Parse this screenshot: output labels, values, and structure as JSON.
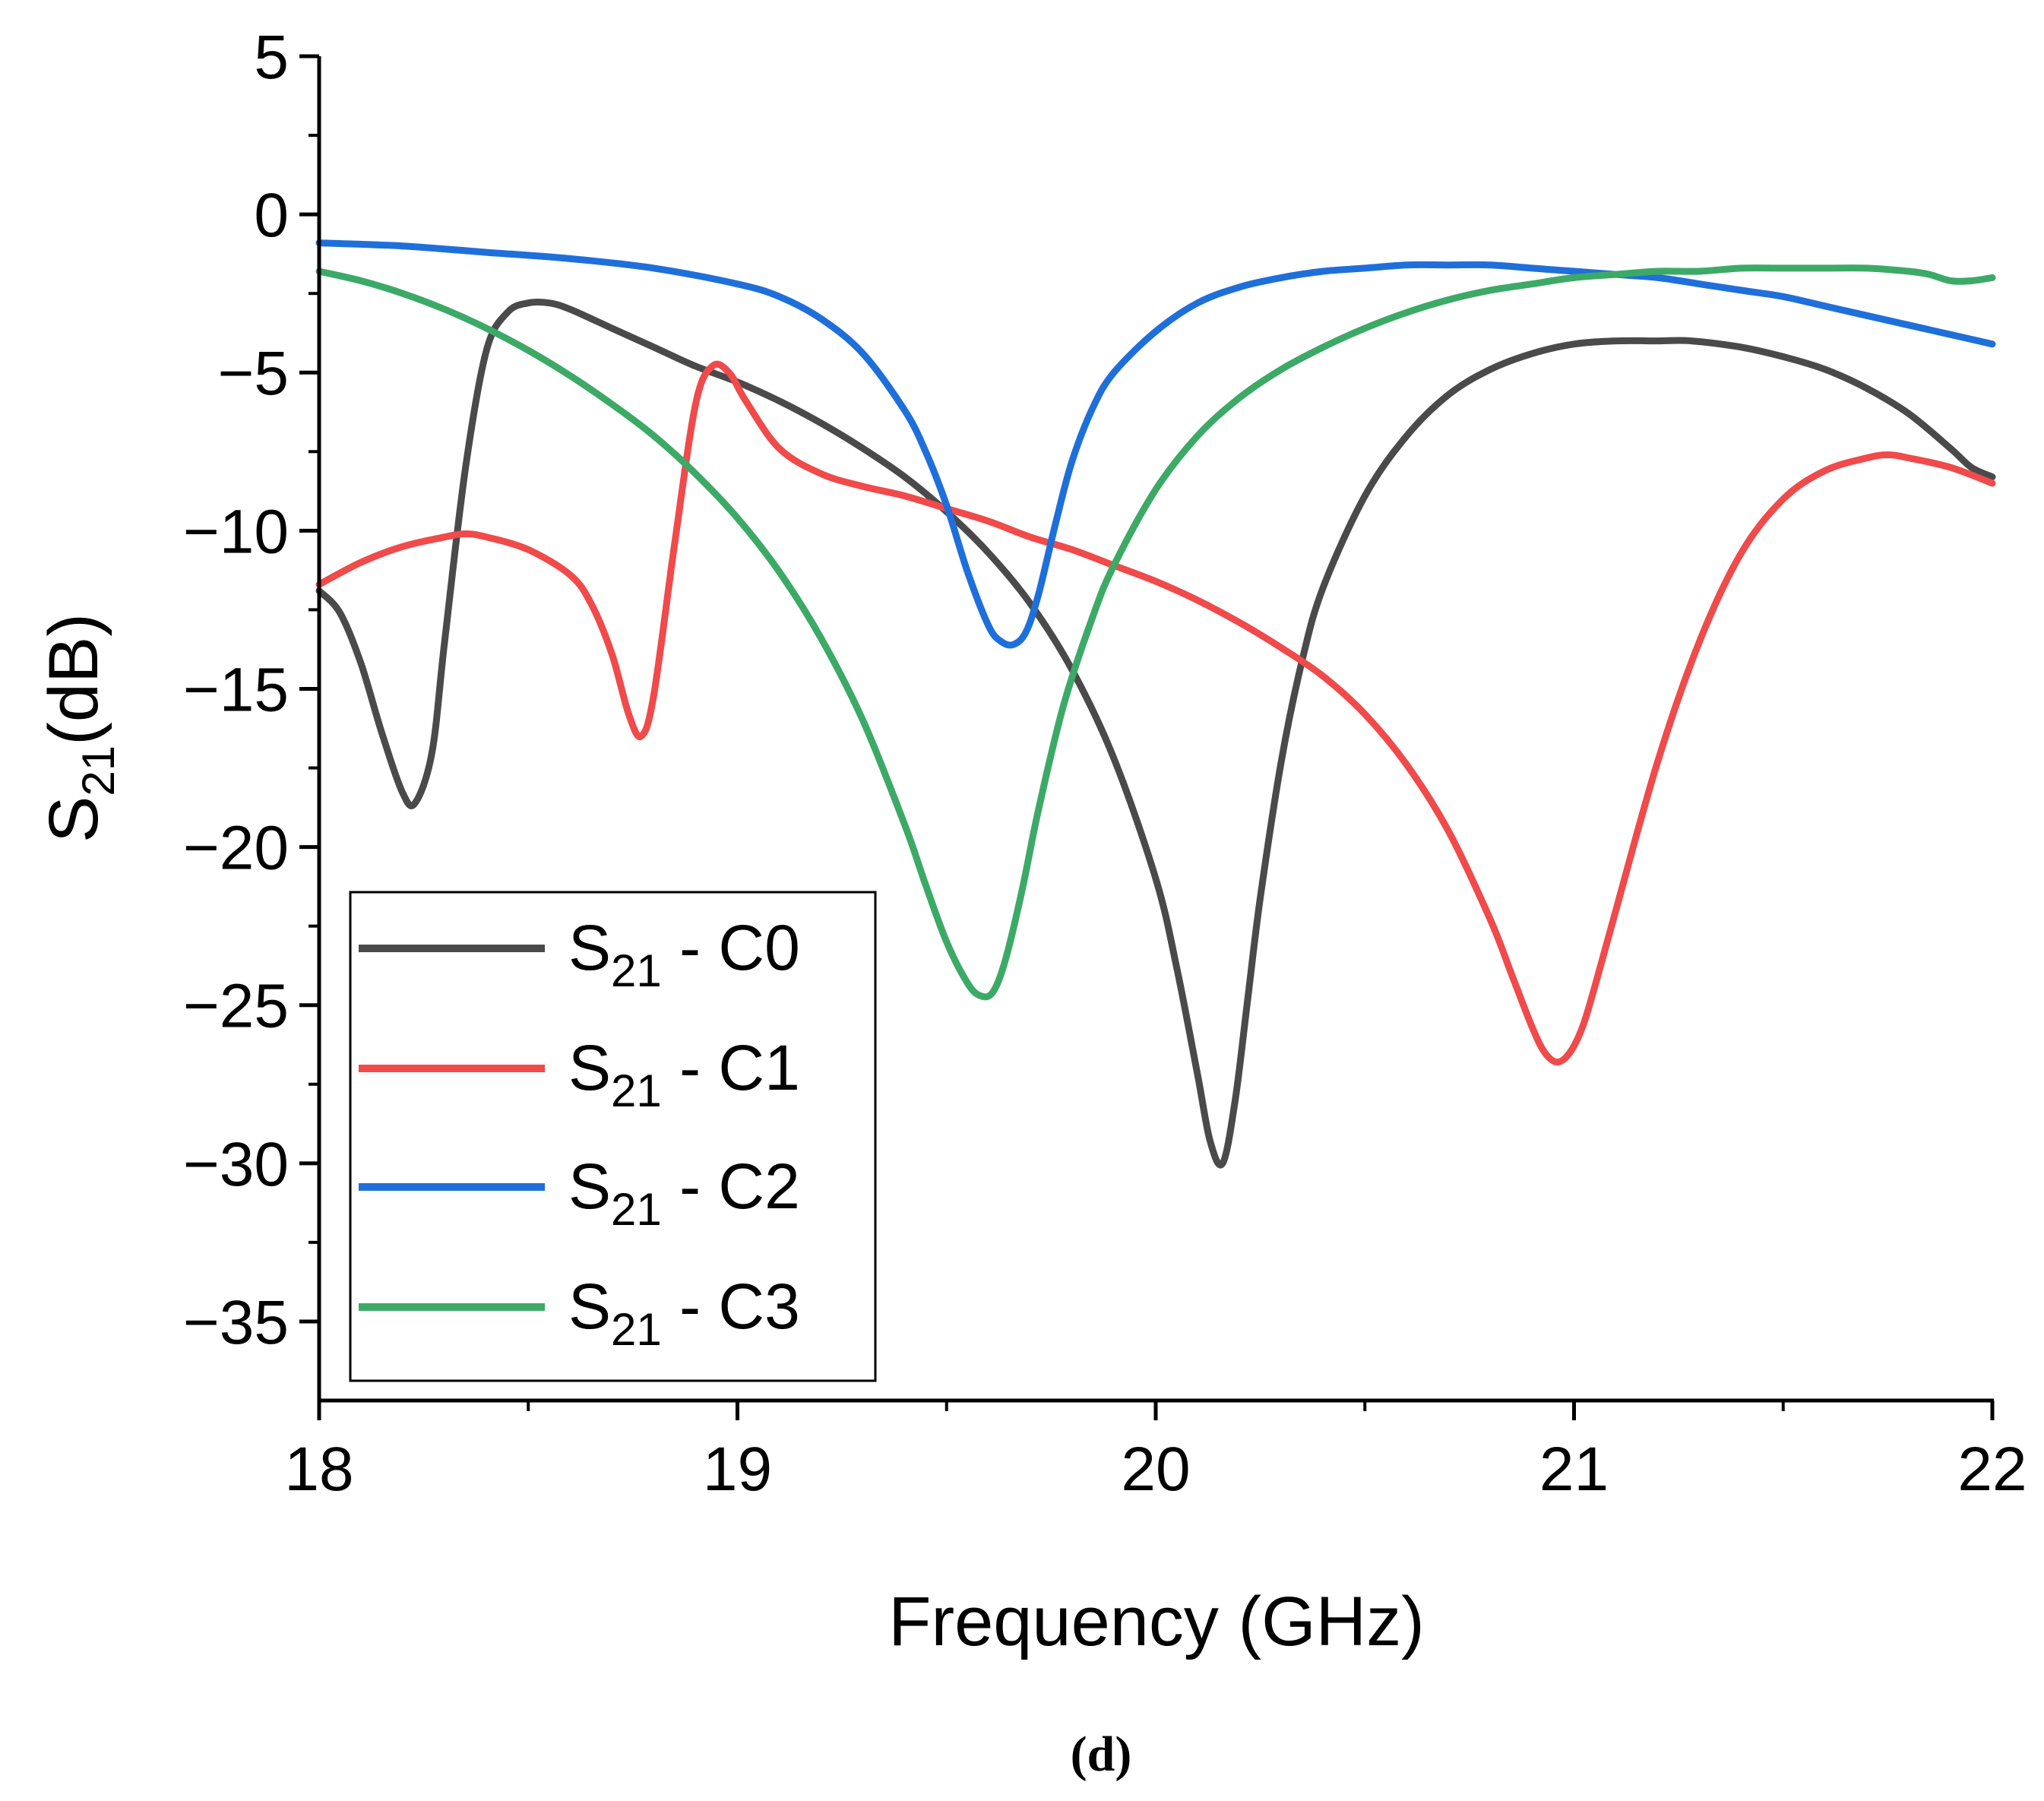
{
  "chart_data": {
    "type": "line",
    "title": "",
    "xlabel": "Frequency (GHz)",
    "ylabel": {
      "base": "S",
      "sub": "21",
      "suffix": "(dB)"
    },
    "xlim": [
      18,
      22
    ],
    "ylim": [
      -37.5,
      5
    ],
    "xticks": [
      18,
      19,
      20,
      21,
      22
    ],
    "xtick_labels": [
      "18",
      "19",
      "20",
      "21",
      "22"
    ],
    "yticks": [
      5,
      0,
      -5,
      -10,
      -15,
      -20,
      -25,
      -30,
      -35
    ],
    "ytick_labels": [
      "5",
      "0",
      "−5",
      "−10",
      "−15",
      "−20",
      "−25",
      "−30",
      "−35"
    ],
    "grid": false,
    "legend_position": "bottom-left",
    "panel_label": "(d)",
    "series": [
      {
        "name": "S21 - C0",
        "label_base": "S",
        "label_sub": "21",
        "label_rest": " - C0",
        "color": "#4a4a4a",
        "x": [
          18.0,
          18.05,
          18.1,
          18.15,
          18.2,
          18.23,
          18.27,
          18.3,
          18.35,
          18.4,
          18.45,
          18.5,
          18.55,
          18.6,
          18.7,
          18.8,
          18.9,
          19.0,
          19.1,
          19.2,
          19.3,
          19.4,
          19.5,
          19.6,
          19.7,
          19.8,
          19.9,
          20.0,
          20.05,
          20.1,
          20.13,
          20.16,
          20.19,
          20.22,
          20.25,
          20.3,
          20.35,
          20.4,
          20.5,
          20.6,
          20.7,
          20.8,
          20.9,
          21.0,
          21.1,
          21.2,
          21.28,
          21.4,
          21.5,
          21.6,
          21.7,
          21.8,
          21.9,
          21.95,
          22.0
        ],
        "y": [
          -11.9,
          -12.6,
          -14.2,
          -16.4,
          -18.3,
          -18.6,
          -17.0,
          -13.5,
          -8.0,
          -4.3,
          -3.1,
          -2.8,
          -2.8,
          -3.0,
          -3.6,
          -4.2,
          -4.8,
          -5.3,
          -5.9,
          -6.6,
          -7.4,
          -8.3,
          -9.4,
          -10.7,
          -12.3,
          -14.4,
          -17.2,
          -21.0,
          -23.8,
          -27.2,
          -29.3,
          -30.0,
          -28.0,
          -24.8,
          -21.6,
          -17.3,
          -14.1,
          -11.8,
          -8.9,
          -7.0,
          -5.7,
          -4.9,
          -4.4,
          -4.1,
          -4.0,
          -4.0,
          -4.0,
          -4.2,
          -4.5,
          -4.9,
          -5.5,
          -6.3,
          -7.4,
          -8.0,
          -8.3
        ]
      },
      {
        "name": "S21 - C1",
        "label_base": "S",
        "label_sub": "21",
        "label_rest": " - C1",
        "color": "#f04a4a",
        "x": [
          18.0,
          18.1,
          18.2,
          18.3,
          18.35,
          18.4,
          18.5,
          18.6,
          18.65,
          18.7,
          18.74,
          18.77,
          18.8,
          18.85,
          18.9,
          18.94,
          18.98,
          19.02,
          19.1,
          19.2,
          19.3,
          19.4,
          19.5,
          19.6,
          19.7,
          19.8,
          19.9,
          20.0,
          20.1,
          20.2,
          20.3,
          20.4,
          20.5,
          20.6,
          20.7,
          20.8,
          20.85,
          20.9,
          20.93,
          20.96,
          20.99,
          21.02,
          21.05,
          21.1,
          21.2,
          21.3,
          21.4,
          21.5,
          21.6,
          21.7,
          21.75,
          21.8,
          21.9,
          22.0
        ],
        "y": [
          -11.7,
          -11.0,
          -10.5,
          -10.2,
          -10.1,
          -10.2,
          -10.6,
          -11.4,
          -12.3,
          -13.9,
          -15.8,
          -16.5,
          -15.2,
          -10.4,
          -6.0,
          -4.8,
          -5.0,
          -5.9,
          -7.4,
          -8.2,
          -8.6,
          -8.9,
          -9.3,
          -9.7,
          -10.2,
          -10.6,
          -11.1,
          -11.6,
          -12.2,
          -12.9,
          -13.7,
          -14.6,
          -15.8,
          -17.4,
          -19.5,
          -22.3,
          -24.0,
          -25.7,
          -26.5,
          -26.8,
          -26.5,
          -25.7,
          -24.4,
          -22.0,
          -17.3,
          -13.5,
          -10.7,
          -9.0,
          -8.1,
          -7.7,
          -7.6,
          -7.7,
          -8.0,
          -8.5
        ]
      },
      {
        "name": "S21 - C2",
        "label_base": "S",
        "label_sub": "21",
        "label_rest": " - C2",
        "color": "#1f6fdb",
        "x": [
          18.0,
          18.2,
          18.4,
          18.6,
          18.8,
          19.0,
          19.1,
          19.2,
          19.3,
          19.4,
          19.45,
          19.5,
          19.55,
          19.6,
          19.63,
          19.66,
          19.69,
          19.72,
          19.76,
          19.8,
          19.85,
          19.9,
          20.0,
          20.1,
          20.2,
          20.3,
          20.4,
          20.5,
          20.6,
          20.7,
          20.8,
          20.9,
          21.0,
          21.1,
          21.2,
          21.3,
          21.4,
          21.5,
          21.6,
          21.7,
          21.8,
          21.9,
          22.0
        ],
        "y": [
          -0.9,
          -1.0,
          -1.2,
          -1.4,
          -1.7,
          -2.2,
          -2.6,
          -3.3,
          -4.4,
          -6.2,
          -7.5,
          -9.2,
          -11.3,
          -13.0,
          -13.5,
          -13.6,
          -13.2,
          -12.0,
          -9.8,
          -7.8,
          -6.1,
          -5.0,
          -3.7,
          -2.8,
          -2.3,
          -2.0,
          -1.8,
          -1.7,
          -1.6,
          -1.6,
          -1.6,
          -1.7,
          -1.8,
          -1.9,
          -2.0,
          -2.2,
          -2.4,
          -2.6,
          -2.9,
          -3.2,
          -3.5,
          -3.8,
          -4.1
        ]
      },
      {
        "name": "S21 - C3",
        "label_base": "S",
        "label_sub": "21",
        "label_rest": " - C3",
        "color": "#3caa66",
        "x": [
          18.0,
          18.1,
          18.2,
          18.3,
          18.4,
          18.5,
          18.6,
          18.7,
          18.8,
          18.9,
          19.0,
          19.1,
          19.2,
          19.3,
          19.4,
          19.45,
          19.5,
          19.55,
          19.58,
          19.61,
          19.64,
          19.68,
          19.72,
          19.78,
          19.85,
          19.9,
          20.0,
          20.1,
          20.2,
          20.3,
          20.4,
          20.5,
          20.6,
          20.7,
          20.8,
          20.9,
          21.0,
          21.1,
          21.2,
          21.3,
          21.4,
          21.5,
          21.6,
          21.7,
          21.8,
          21.85,
          21.9,
          21.95,
          22.0
        ],
        "y": [
          -1.8,
          -2.1,
          -2.5,
          -3.0,
          -3.6,
          -4.3,
          -5.1,
          -6.0,
          -7.0,
          -8.2,
          -9.6,
          -11.3,
          -13.4,
          -16.0,
          -19.3,
          -21.2,
          -23.0,
          -24.3,
          -24.7,
          -24.6,
          -23.6,
          -21.4,
          -18.8,
          -15.5,
          -12.7,
          -11.1,
          -8.7,
          -7.0,
          -5.8,
          -4.9,
          -4.2,
          -3.6,
          -3.1,
          -2.7,
          -2.4,
          -2.2,
          -2.0,
          -1.9,
          -1.8,
          -1.8,
          -1.7,
          -1.7,
          -1.7,
          -1.7,
          -1.8,
          -1.9,
          -2.1,
          -2.1,
          -2.0
        ]
      }
    ]
  }
}
